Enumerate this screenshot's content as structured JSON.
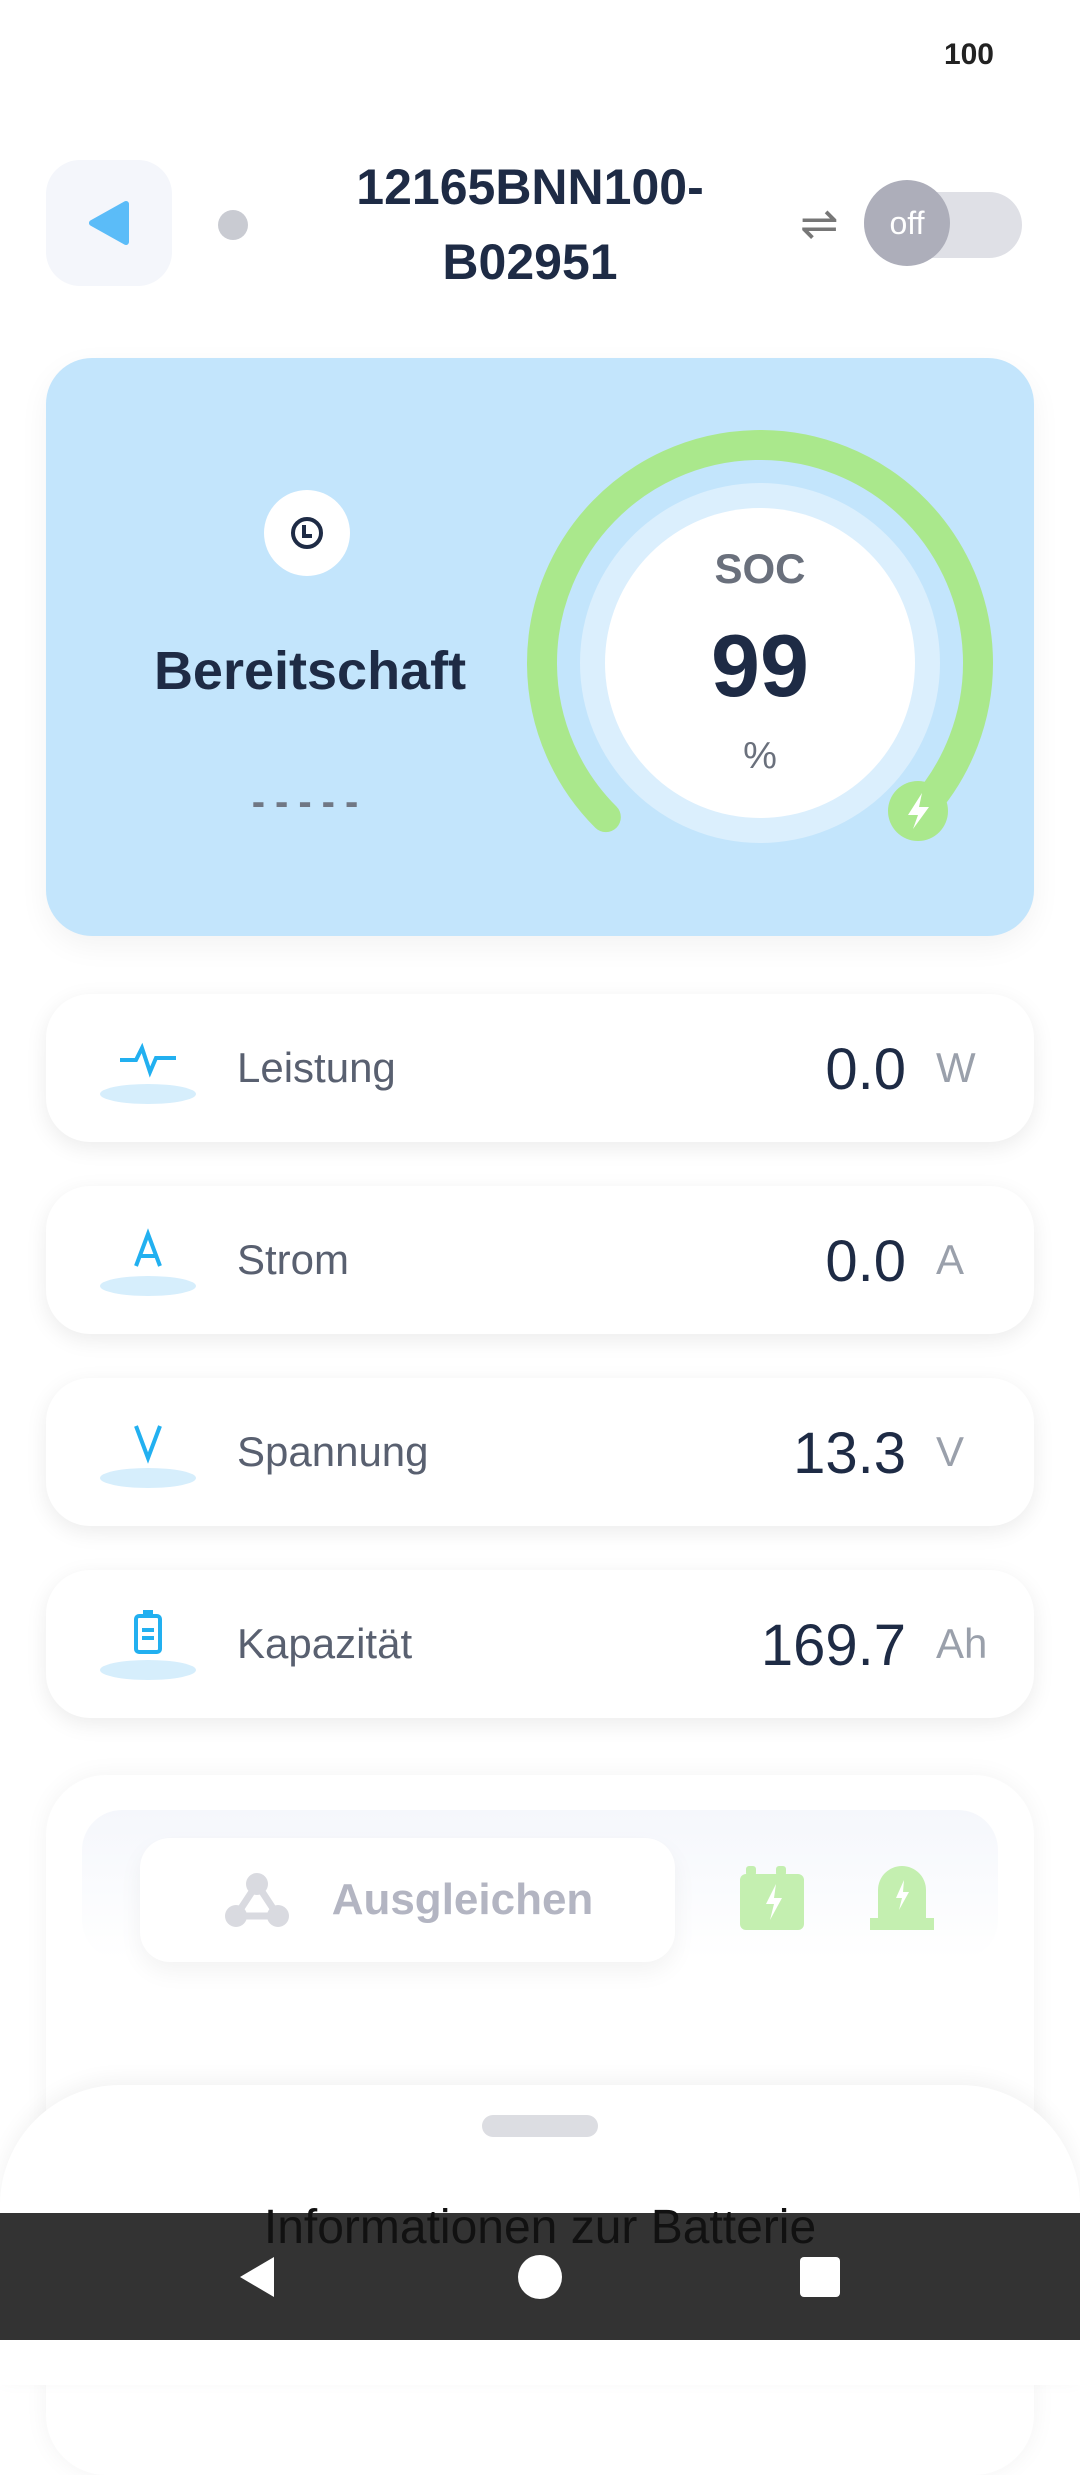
{
  "status_bar": {
    "battery": "100"
  },
  "header": {
    "device_name": "12165BNN100-B02951",
    "toggle_label": "off",
    "toggle_on": false
  },
  "status_card": {
    "state": "Bereitschaft",
    "time_remaining": "-----",
    "soc_label": "SOC",
    "soc_value": "99",
    "soc_unit": "%",
    "soc_percent": 99
  },
  "metrics": [
    {
      "label": "Leistung",
      "value": "0.0",
      "unit": "W",
      "icon": "pulse-icon"
    },
    {
      "label": "Strom",
      "value": "0.0",
      "unit": "A",
      "icon": "current-icon"
    },
    {
      "label": "Spannung",
      "value": "13.3",
      "unit": "V",
      "icon": "voltage-icon"
    },
    {
      "label": "Kapazität",
      "value": "169.7",
      "unit": "Ah",
      "icon": "battery-icon"
    }
  ],
  "actions": {
    "balance_label": "Ausgleichen"
  },
  "sheet": {
    "title": "Informationen zur Batterie"
  },
  "colors": {
    "accent": "#5bbcf8",
    "card": "#c3e5fc",
    "gauge": "#aae88c",
    "text": "#1e2b45"
  }
}
